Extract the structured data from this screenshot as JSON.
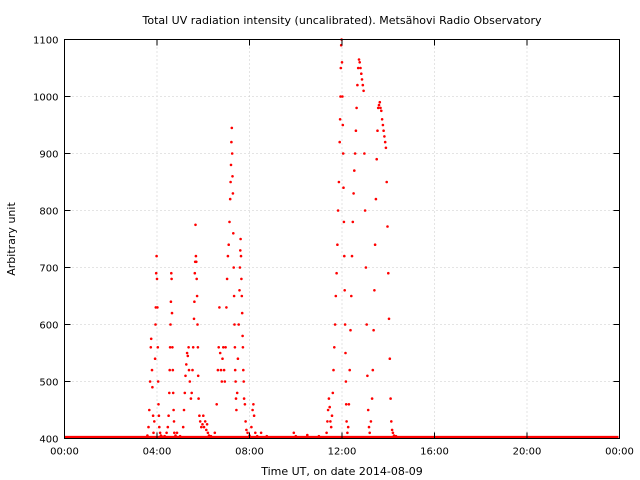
{
  "chart_data": {
    "type": "scatter",
    "title": "Total UV radiation intensity (uncalibrated). Metsähovi Radio Observatory",
    "xlabel": "Time UT, on date 2014-08-09",
    "ylabel": "Arbitrary unit",
    "xlim": [
      "00:00",
      "24:00"
    ],
    "ylim": [
      400,
      1100
    ],
    "x_tick_labels": [
      "00:00",
      "04:00",
      "08:00",
      "12:00",
      "16:00",
      "20:00",
      "00:00"
    ],
    "y_tick_labels": [
      "400",
      "500",
      "600",
      "700",
      "800",
      "900",
      "1000",
      "1100"
    ],
    "grid": true,
    "point_color": "#ff0000",
    "baseline_value": 402,
    "series": [
      {
        "values": [
          [
            "03:35",
            405
          ],
          [
            "03:38",
            420
          ],
          [
            "03:40",
            450
          ],
          [
            "03:42",
            500
          ],
          [
            "03:44",
            560
          ],
          [
            "03:45",
            575
          ],
          [
            "03:47",
            520
          ],
          [
            "03:48",
            490
          ],
          [
            "03:50",
            440
          ],
          [
            "03:51",
            410
          ],
          [
            "03:53",
            430
          ],
          [
            "03:55",
            540
          ],
          [
            "03:56",
            600
          ],
          [
            "03:57",
            630
          ],
          [
            "03:58",
            690
          ],
          [
            "03:59",
            720
          ],
          [
            "04:00",
            680
          ],
          [
            "04:01",
            630
          ],
          [
            "04:02",
            560
          ],
          [
            "04:03",
            500
          ],
          [
            "04:04",
            460
          ],
          [
            "04:05",
            440
          ],
          [
            "04:06",
            420
          ],
          [
            "04:08",
            410
          ],
          [
            "04:10",
            405
          ],
          [
            "04:15",
            403
          ],
          [
            "04:20",
            404
          ],
          [
            "04:25",
            410
          ],
          [
            "04:28",
            420
          ],
          [
            "04:30",
            440
          ],
          [
            "04:32",
            480
          ],
          [
            "04:33",
            520
          ],
          [
            "04:34",
            560
          ],
          [
            "04:35",
            600
          ],
          [
            "04:36",
            640
          ],
          [
            "04:37",
            690
          ],
          [
            "04:38",
            680
          ],
          [
            "04:39",
            620
          ],
          [
            "04:40",
            560
          ],
          [
            "04:41",
            520
          ],
          [
            "04:42",
            480
          ],
          [
            "04:43",
            450
          ],
          [
            "04:44",
            430
          ],
          [
            "04:45",
            410
          ],
          [
            "04:48",
            405
          ],
          [
            "04:52",
            410
          ],
          [
            "05:00",
            404
          ],
          [
            "05:08",
            420
          ],
          [
            "05:10",
            450
          ],
          [
            "05:12",
            480
          ],
          [
            "05:14",
            510
          ],
          [
            "05:16",
            530
          ],
          [
            "05:18",
            550
          ],
          [
            "05:20",
            545
          ],
          [
            "05:22",
            560
          ],
          [
            "05:23",
            520
          ],
          [
            "05:25",
            500
          ],
          [
            "05:28",
            470
          ],
          [
            "05:30",
            480
          ],
          [
            "05:32",
            520
          ],
          [
            "05:34",
            560
          ],
          [
            "05:36",
            610
          ],
          [
            "05:37",
            640
          ],
          [
            "05:38",
            690
          ],
          [
            "05:39",
            710
          ],
          [
            "05:40",
            775
          ],
          [
            "05:41",
            720
          ],
          [
            "05:42",
            710
          ],
          [
            "05:43",
            680
          ],
          [
            "05:44",
            650
          ],
          [
            "05:45",
            600
          ],
          [
            "05:46",
            560
          ],
          [
            "05:47",
            510
          ],
          [
            "05:48",
            470
          ],
          [
            "05:50",
            440
          ],
          [
            "05:52",
            430
          ],
          [
            "05:55",
            420
          ],
          [
            "05:58",
            425
          ],
          [
            "06:00",
            440
          ],
          [
            "06:02",
            420
          ],
          [
            "06:05",
            430
          ],
          [
            "06:08",
            415
          ],
          [
            "06:10",
            425
          ],
          [
            "06:12",
            410
          ],
          [
            "06:15",
            405
          ],
          [
            "06:20",
            404
          ],
          [
            "06:30",
            410
          ],
          [
            "06:35",
            460
          ],
          [
            "06:38",
            520
          ],
          [
            "06:40",
            560
          ],
          [
            "06:42",
            630
          ],
          [
            "06:44",
            550
          ],
          [
            "06:46",
            520
          ],
          [
            "06:48",
            500
          ],
          [
            "06:50",
            540
          ],
          [
            "06:52",
            560
          ],
          [
            "06:54",
            520
          ],
          [
            "06:56",
            500
          ],
          [
            "06:58",
            560
          ],
          [
            "07:00",
            630
          ],
          [
            "07:02",
            680
          ],
          [
            "07:04",
            720
          ],
          [
            "07:06",
            740
          ],
          [
            "07:08",
            780
          ],
          [
            "07:10",
            820
          ],
          [
            "07:11",
            850
          ],
          [
            "07:12",
            880
          ],
          [
            "07:13",
            920
          ],
          [
            "07:14",
            945
          ],
          [
            "07:15",
            900
          ],
          [
            "07:16",
            860
          ],
          [
            "07:17",
            830
          ],
          [
            "07:18",
            760
          ],
          [
            "07:19",
            700
          ],
          [
            "07:20",
            650
          ],
          [
            "07:21",
            600
          ],
          [
            "07:22",
            560
          ],
          [
            "07:23",
            520
          ],
          [
            "07:24",
            500
          ],
          [
            "07:25",
            470
          ],
          [
            "07:26",
            450
          ],
          [
            "07:28",
            480
          ],
          [
            "07:30",
            540
          ],
          [
            "07:32",
            600
          ],
          [
            "07:34",
            660
          ],
          [
            "07:35",
            700
          ],
          [
            "07:36",
            730
          ],
          [
            "07:37",
            750
          ],
          [
            "07:38",
            720
          ],
          [
            "07:39",
            680
          ],
          [
            "07:40",
            650
          ],
          [
            "07:41",
            620
          ],
          [
            "07:42",
            580
          ],
          [
            "07:43",
            560
          ],
          [
            "07:44",
            520
          ],
          [
            "07:45",
            500
          ],
          [
            "07:46",
            470
          ],
          [
            "07:48",
            460
          ],
          [
            "07:50",
            430
          ],
          [
            "07:52",
            415
          ],
          [
            "07:55",
            410
          ],
          [
            "08:00",
            405
          ],
          [
            "08:05",
            420
          ],
          [
            "08:08",
            450
          ],
          [
            "08:10",
            460
          ],
          [
            "08:12",
            440
          ],
          [
            "08:15",
            410
          ],
          [
            "08:20",
            404
          ],
          [
            "08:30",
            410
          ],
          [
            "08:45",
            404
          ],
          [
            "09:55",
            410
          ],
          [
            "10:00",
            404
          ],
          [
            "10:30",
            406
          ],
          [
            "11:00",
            404
          ],
          [
            "11:20",
            410
          ],
          [
            "11:22",
            430
          ],
          [
            "11:24",
            450
          ],
          [
            "11:26",
            470
          ],
          [
            "11:28",
            455
          ],
          [
            "11:30",
            430
          ],
          [
            "11:32",
            420
          ],
          [
            "11:34",
            440
          ],
          [
            "11:36",
            480
          ],
          [
            "11:38",
            520
          ],
          [
            "11:40",
            560
          ],
          [
            "11:42",
            600
          ],
          [
            "11:44",
            650
          ],
          [
            "11:46",
            690
          ],
          [
            "11:48",
            740
          ],
          [
            "11:50",
            800
          ],
          [
            "11:52",
            850
          ],
          [
            "11:54",
            920
          ],
          [
            "11:55",
            960
          ],
          [
            "11:56",
            1000
          ],
          [
            "11:57",
            1050
          ],
          [
            "11:58",
            1090
          ],
          [
            "11:59",
            1100
          ],
          [
            "12:00",
            1060
          ],
          [
            "12:01",
            1000
          ],
          [
            "12:02",
            950
          ],
          [
            "12:03",
            900
          ],
          [
            "12:04",
            840
          ],
          [
            "12:05",
            780
          ],
          [
            "12:06",
            720
          ],
          [
            "12:07",
            660
          ],
          [
            "12:08",
            600
          ],
          [
            "12:09",
            550
          ],
          [
            "12:10",
            500
          ],
          [
            "12:11",
            460
          ],
          [
            "12:12",
            430
          ],
          [
            "12:14",
            410
          ],
          [
            "12:16",
            420
          ],
          [
            "12:18",
            460
          ],
          [
            "12:20",
            520
          ],
          [
            "12:22",
            590
          ],
          [
            "12:24",
            650
          ],
          [
            "12:26",
            720
          ],
          [
            "12:28",
            780
          ],
          [
            "12:30",
            830
          ],
          [
            "12:32",
            870
          ],
          [
            "12:34",
            900
          ],
          [
            "12:36",
            940
          ],
          [
            "12:38",
            980
          ],
          [
            "12:40",
            1020
          ],
          [
            "12:42",
            1050
          ],
          [
            "12:44",
            1065
          ],
          [
            "12:46",
            1060
          ],
          [
            "12:48",
            1050
          ],
          [
            "12:50",
            1040
          ],
          [
            "12:52",
            1030
          ],
          [
            "12:54",
            1020
          ],
          [
            "12:56",
            1010
          ],
          [
            "12:58",
            900
          ],
          [
            "13:00",
            800
          ],
          [
            "13:02",
            700
          ],
          [
            "13:04",
            600
          ],
          [
            "13:06",
            510
          ],
          [
            "13:08",
            450
          ],
          [
            "13:10",
            420
          ],
          [
            "13:12",
            410
          ],
          [
            "13:15",
            430
          ],
          [
            "13:18",
            470
          ],
          [
            "13:20",
            520
          ],
          [
            "13:22",
            590
          ],
          [
            "13:24",
            660
          ],
          [
            "13:26",
            740
          ],
          [
            "13:28",
            820
          ],
          [
            "13:30",
            890
          ],
          [
            "13:32",
            940
          ],
          [
            "13:34",
            980
          ],
          [
            "13:36",
            985
          ],
          [
            "13:38",
            990
          ],
          [
            "13:40",
            980
          ],
          [
            "13:42",
            975
          ],
          [
            "13:44",
            960
          ],
          [
            "13:46",
            950
          ],
          [
            "13:48",
            940
          ],
          [
            "13:50",
            930
          ],
          [
            "13:52",
            920
          ],
          [
            "13:54",
            910
          ],
          [
            "13:56",
            850
          ],
          [
            "13:58",
            772
          ],
          [
            "14:00",
            690
          ],
          [
            "14:02",
            610
          ],
          [
            "14:04",
            540
          ],
          [
            "14:06",
            470
          ],
          [
            "14:08",
            430
          ],
          [
            "14:10",
            415
          ],
          [
            "14:12",
            410
          ],
          [
            "14:15",
            405
          ],
          [
            "14:20",
            404
          ]
        ]
      }
    ]
  }
}
